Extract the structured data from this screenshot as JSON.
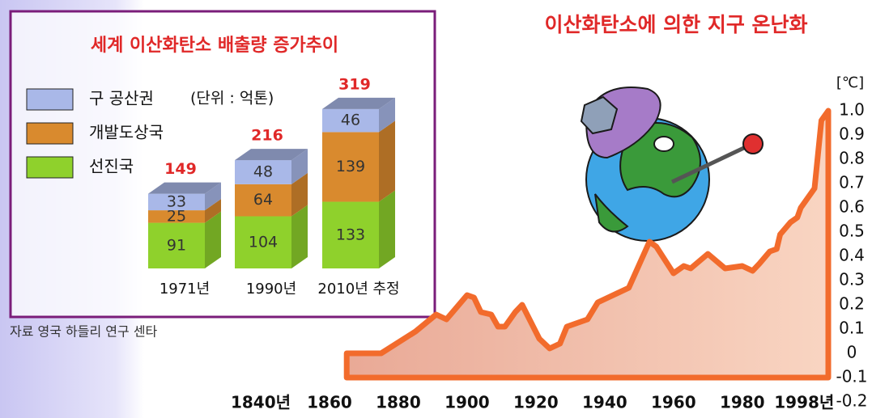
{
  "chart_data": [
    {
      "type": "stacked-bar-3d",
      "title": "세계 이산화탄소 배출량 증가추이",
      "unit_note": "(단위 : 억톤)",
      "source": "자료 영국 하들리 연구 센타",
      "categories": [
        "1971년",
        "1990년",
        "2010년 추정"
      ],
      "series": [
        {
          "name": "선진국",
          "color": "#8fd12c",
          "values": [
            91,
            104,
            133
          ]
        },
        {
          "name": "개발도상국",
          "color": "#d98a2e",
          "values": [
            25,
            64,
            139
          ]
        },
        {
          "name": "구 공산권",
          "color": "#a9b8e8",
          "values": [
            33,
            48,
            46
          ]
        }
      ],
      "totals": [
        149,
        216,
        319
      ]
    },
    {
      "type": "area",
      "title": "이산화탄소에 의한 지구 온난화",
      "y_unit": "[℃]",
      "color": "#f26b2c",
      "x": [
        1865,
        1875,
        1885,
        1891,
        1894,
        1900,
        1902,
        1904,
        1907,
        1909,
        1911,
        1914,
        1916,
        1921,
        1924,
        1927,
        1929,
        1935,
        1938,
        1947,
        1953,
        1955,
        1960,
        1963,
        1965,
        1970,
        1975,
        1980,
        1983,
        1985,
        1988,
        1990,
        1991,
        1994,
        1996,
        1997,
        2001,
        2003,
        2005
      ],
      "values": [
        0,
        0,
        0.09,
        0.16,
        0.14,
        0.24,
        0.23,
        0.17,
        0.16,
        0.11,
        0.11,
        0.17,
        0.2,
        0.06,
        0.02,
        0.04,
        0.11,
        0.14,
        0.21,
        0.27,
        0.46,
        0.44,
        0.33,
        0.36,
        0.35,
        0.41,
        0.35,
        0.36,
        0.34,
        0.37,
        0.42,
        0.43,
        0.49,
        0.54,
        0.56,
        0.6,
        0.68,
        0.96,
        1.0
      ],
      "baseline": -0.1,
      "xlim": [
        1840,
        2005
      ],
      "xticks": [
        {
          "value": 1840,
          "label": "1840년"
        },
        1860,
        1880,
        1900,
        1920,
        1940,
        1960,
        1980,
        {
          "value": 1998,
          "label": "1998년"
        }
      ],
      "ylim": [
        -0.2,
        1.0
      ],
      "yticks": [
        {
          "value": -0.2,
          "label": "-0.2"
        },
        {
          "value": -0.1,
          "label": "-0.1"
        },
        0,
        0.1,
        0.2,
        0.3,
        0.4,
        0.5,
        0.6,
        0.7,
        0.8,
        0.9,
        {
          "value": 1,
          "label": "1.0"
        }
      ]
    }
  ]
}
